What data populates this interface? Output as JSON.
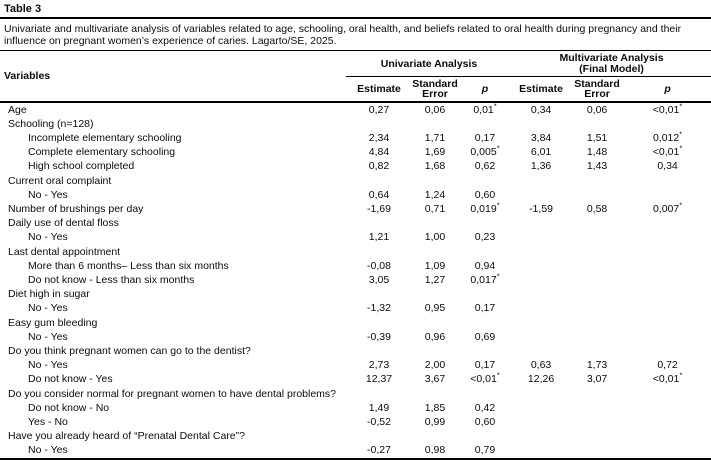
{
  "table": {
    "label": "Table 3",
    "caption": "Univariate and multivariate analysis of variables related to age, schooling, oral health, and beliefs related to oral health during pregnancy and their influence on pregnant women’s experience of caries. Lagarto/SE, 2025.",
    "header": {
      "variables_label": "Variables",
      "groups": [
        {
          "line1": "Univariate Analysis",
          "line2": ""
        },
        {
          "line1": "Multivariate Analysis",
          "line2": "(Final Model)"
        }
      ],
      "subcolumns": [
        "Estimate",
        "Standard Error",
        "p"
      ]
    },
    "rows": [
      {
        "label": "Age",
        "indent": 0,
        "uni": [
          "0,27",
          "0,06",
          "0,01*"
        ],
        "multi": [
          "0,34",
          "0,06",
          "<0,01*"
        ]
      },
      {
        "label": "Schooling (n=128)",
        "indent": 0,
        "uni": [
          "",
          "",
          ""
        ],
        "multi": [
          "",
          "",
          ""
        ]
      },
      {
        "label": "Incomplete elementary schooling",
        "indent": 1,
        "uni": [
          "2,34",
          "1,71",
          "0,17"
        ],
        "multi": [
          "3,84",
          "1,51",
          "0,012*"
        ]
      },
      {
        "label": "Complete elementary schooling",
        "indent": 1,
        "uni": [
          "4,84",
          "1,69",
          "0,005*"
        ],
        "multi": [
          "6,01",
          "1,48",
          "<0,01*"
        ]
      },
      {
        "label": "High school completed",
        "indent": 1,
        "uni": [
          "0,82",
          "1,68",
          "0,62"
        ],
        "multi": [
          "1,36",
          "1,43",
          "0,34"
        ]
      },
      {
        "label": "Current oral complaint",
        "indent": 0,
        "uni": [
          "",
          "",
          ""
        ],
        "multi": [
          "",
          "",
          ""
        ]
      },
      {
        "label": "No - Yes",
        "indent": 1,
        "uni": [
          "0,64",
          "1,24",
          "0,60"
        ],
        "multi": [
          "",
          "",
          ""
        ]
      },
      {
        "label": "Number of brushings per day",
        "indent": 0,
        "uni": [
          "-1,69",
          "0,71",
          "0,019*"
        ],
        "multi": [
          "-1,59",
          "0,58",
          "0,007*"
        ]
      },
      {
        "label": "Daily use of dental floss",
        "indent": 0,
        "uni": [
          "",
          "",
          ""
        ],
        "multi": [
          "",
          "",
          ""
        ]
      },
      {
        "label": "No - Yes",
        "indent": 1,
        "uni": [
          "1,21",
          "1,00",
          "0,23"
        ],
        "multi": [
          "",
          "",
          ""
        ]
      },
      {
        "label": "Last dental appointment",
        "indent": 0,
        "uni": [
          "",
          "",
          ""
        ],
        "multi": [
          "",
          "",
          ""
        ]
      },
      {
        "label": "More than 6 months– Less than six months",
        "indent": 1,
        "uni": [
          "-0,08",
          "1,09",
          "0,94"
        ],
        "multi": [
          "",
          "",
          ""
        ]
      },
      {
        "label": "Do not know - Less than six months",
        "indent": 1,
        "uni": [
          "3,05",
          "1,27",
          "0,017*"
        ],
        "multi": [
          "",
          "",
          ""
        ]
      },
      {
        "label": "Diet high in sugar",
        "indent": 0,
        "uni": [
          "",
          "",
          ""
        ],
        "multi": [
          "",
          "",
          ""
        ]
      },
      {
        "label": "No - Yes",
        "indent": 1,
        "uni": [
          "-1,32",
          "0,95",
          "0,17"
        ],
        "multi": [
          "",
          "",
          ""
        ]
      },
      {
        "label": "Easy gum bleeding",
        "indent": 0,
        "uni": [
          "",
          "",
          ""
        ],
        "multi": [
          "",
          "",
          ""
        ]
      },
      {
        "label": "No - Yes",
        "indent": 1,
        "uni": [
          "-0,39",
          "0,96",
          "0,69"
        ],
        "multi": [
          "",
          "",
          ""
        ]
      },
      {
        "label": "Do you think pregnant women can go to the dentist?",
        "indent": 0,
        "uni": [
          "",
          "",
          ""
        ],
        "multi": [
          "",
          "",
          ""
        ]
      },
      {
        "label": "No - Yes",
        "indent": 1,
        "uni": [
          "2,73",
          "2,00",
          "0,17"
        ],
        "multi": [
          "0,63",
          "1,73",
          "0,72"
        ]
      },
      {
        "label": "Do not know - Yes",
        "indent": 1,
        "uni": [
          "12,37",
          "3,67",
          "<0,01*"
        ],
        "multi": [
          "12,26",
          "3,07",
          "<0,01*"
        ]
      },
      {
        "label": "Do you consider normal for pregnant women to have dental problems?",
        "indent": 0,
        "uni": [
          "",
          "",
          ""
        ],
        "multi": [
          "",
          "",
          ""
        ]
      },
      {
        "label": "Do not know - No",
        "indent": 1,
        "uni": [
          "1,49",
          "1,85",
          "0,42"
        ],
        "multi": [
          "",
          "",
          ""
        ]
      },
      {
        "label": "Yes - No",
        "indent": 1,
        "uni": [
          "-0,52",
          "0,99",
          "0,60"
        ],
        "multi": [
          "",
          "",
          ""
        ]
      },
      {
        "label": "Have you already heard of “Prenatal Dental Care”?",
        "indent": 0,
        "uni": [
          "",
          "",
          ""
        ],
        "multi": [
          "",
          "",
          ""
        ]
      },
      {
        "label": "No - Yes",
        "indent": 1,
        "uni": [
          "-0,27",
          "0,98",
          "0,79"
        ],
        "multi": [
          "",
          "",
          ""
        ]
      }
    ]
  }
}
